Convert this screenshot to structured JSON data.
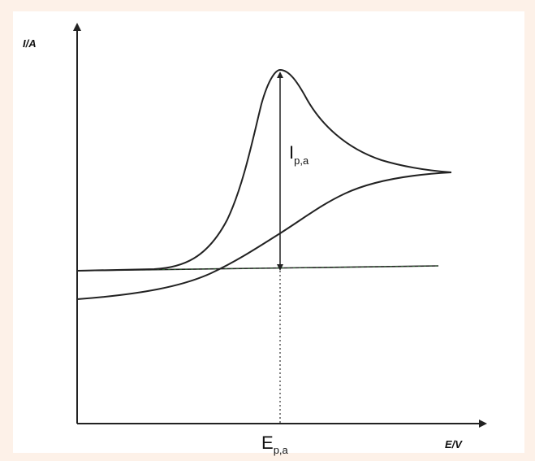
{
  "diagram": {
    "y_axis_label": "I/A",
    "x_axis_label": "E/V",
    "peak_current_label": {
      "main": "I",
      "sub": "p,a"
    },
    "peak_potential_label": {
      "main": "E",
      "sub": "p,a"
    }
  },
  "colors": {
    "frame": "#fdf1e8",
    "curve": "#222222",
    "baseline": "#2e7d32"
  }
}
